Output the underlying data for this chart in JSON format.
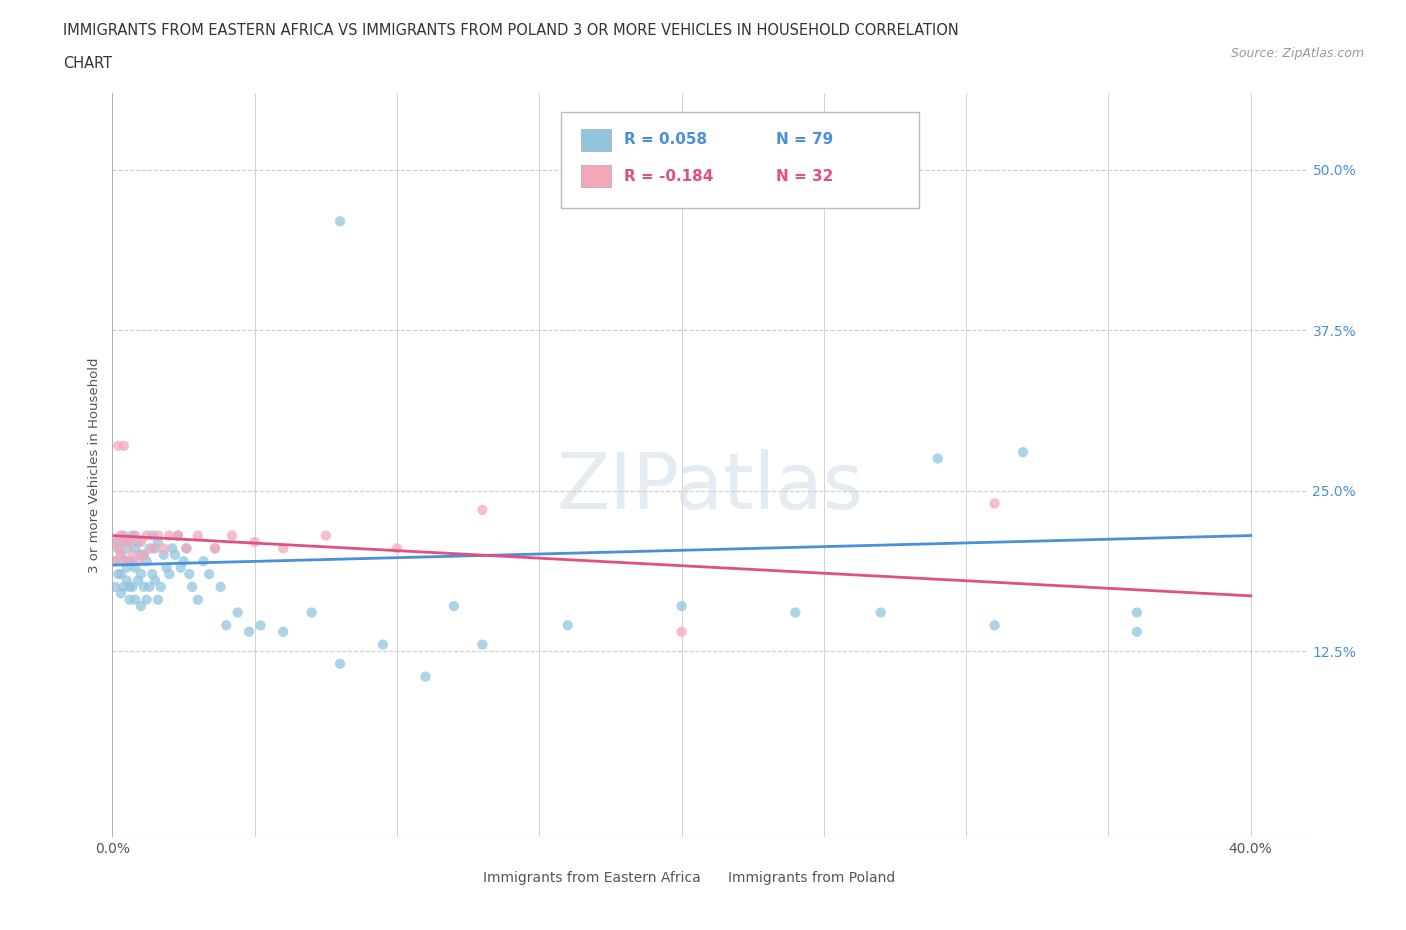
{
  "title_line1": "IMMIGRANTS FROM EASTERN AFRICA VS IMMIGRANTS FROM POLAND 3 OR MORE VEHICLES IN HOUSEHOLD CORRELATION",
  "title_line2": "CHART",
  "source": "Source: ZipAtlas.com",
  "ylabel": "3 or more Vehicles in Household",
  "xlim": [
    0.0,
    0.42
  ],
  "ylim": [
    -0.02,
    0.56
  ],
  "xticks": [
    0.0,
    0.05,
    0.1,
    0.15,
    0.2,
    0.25,
    0.3,
    0.35,
    0.4
  ],
  "xticklabels": [
    "0.0%",
    "",
    "",
    "",
    "",
    "",
    "",
    "",
    "40.0%"
  ],
  "ytick_positions": [
    0.0,
    0.125,
    0.25,
    0.375,
    0.5
  ],
  "ytick_labels": [
    "",
    "12.5%",
    "25.0%",
    "37.5%",
    "50.0%"
  ],
  "blue_color": "#92C5DE",
  "pink_color": "#F4A7B9",
  "blue_line_color": "#4A90D9",
  "pink_line_color": "#E05080",
  "legend_R1": "R = 0.058",
  "legend_N1": "N = 79",
  "legend_R2": "R = -0.184",
  "legend_N2": "N = 32",
  "legend_label1": "Immigrants from Eastern Africa",
  "legend_label2": "Immigrants from Poland",
  "watermark": "ZIPatlas",
  "blue_x": [
    0.001,
    0.001,
    0.002,
    0.002,
    0.002,
    0.003,
    0.003,
    0.003,
    0.004,
    0.004,
    0.004,
    0.005,
    0.005,
    0.005,
    0.005,
    0.006,
    0.006,
    0.006,
    0.007,
    0.007,
    0.007,
    0.008,
    0.008,
    0.008,
    0.009,
    0.009,
    0.01,
    0.01,
    0.01,
    0.011,
    0.011,
    0.012,
    0.012,
    0.013,
    0.013,
    0.014,
    0.014,
    0.015,
    0.015,
    0.016,
    0.016,
    0.017,
    0.018,
    0.019,
    0.02,
    0.021,
    0.022,
    0.023,
    0.024,
    0.025,
    0.026,
    0.027,
    0.028,
    0.03,
    0.032,
    0.034,
    0.036,
    0.038,
    0.04,
    0.044,
    0.048,
    0.052,
    0.06,
    0.07,
    0.08,
    0.095,
    0.11,
    0.13,
    0.16,
    0.2,
    0.24,
    0.27,
    0.31,
    0.36,
    0.36,
    0.32,
    0.29,
    0.12,
    0.08
  ],
  "blue_y": [
    0.195,
    0.175,
    0.21,
    0.185,
    0.205,
    0.2,
    0.185,
    0.17,
    0.215,
    0.195,
    0.175,
    0.21,
    0.19,
    0.205,
    0.18,
    0.195,
    0.175,
    0.165,
    0.215,
    0.195,
    0.175,
    0.205,
    0.19,
    0.165,
    0.21,
    0.18,
    0.2,
    0.185,
    0.16,
    0.2,
    0.175,
    0.195,
    0.165,
    0.205,
    0.175,
    0.215,
    0.185,
    0.205,
    0.18,
    0.165,
    0.21,
    0.175,
    0.2,
    0.19,
    0.185,
    0.205,
    0.2,
    0.215,
    0.19,
    0.195,
    0.205,
    0.185,
    0.175,
    0.165,
    0.195,
    0.185,
    0.205,
    0.175,
    0.145,
    0.155,
    0.14,
    0.145,
    0.14,
    0.155,
    0.115,
    0.13,
    0.105,
    0.13,
    0.145,
    0.16,
    0.155,
    0.155,
    0.145,
    0.14,
    0.155,
    0.28,
    0.275,
    0.16,
    0.46
  ],
  "pink_x": [
    0.001,
    0.001,
    0.002,
    0.002,
    0.003,
    0.003,
    0.004,
    0.005,
    0.005,
    0.006,
    0.007,
    0.008,
    0.009,
    0.01,
    0.011,
    0.012,
    0.014,
    0.016,
    0.018,
    0.02,
    0.023,
    0.026,
    0.03,
    0.036,
    0.042,
    0.05,
    0.06,
    0.075,
    0.1,
    0.13,
    0.2,
    0.31
  ],
  "pink_y": [
    0.21,
    0.195,
    0.285,
    0.205,
    0.215,
    0.2,
    0.285,
    0.21,
    0.195,
    0.21,
    0.2,
    0.215,
    0.195,
    0.21,
    0.2,
    0.215,
    0.205,
    0.215,
    0.205,
    0.215,
    0.215,
    0.205,
    0.215,
    0.205,
    0.215,
    0.21,
    0.205,
    0.215,
    0.205,
    0.235,
    0.14,
    0.24
  ],
  "blue_trend_x": [
    0.0,
    0.4
  ],
  "blue_trend_y": [
    0.192,
    0.215
  ],
  "pink_trend_x": [
    0.0,
    0.4
  ],
  "pink_trend_y": [
    0.215,
    0.168
  ],
  "grid_color": "#CCCCCC",
  "background_color": "#FFFFFF"
}
